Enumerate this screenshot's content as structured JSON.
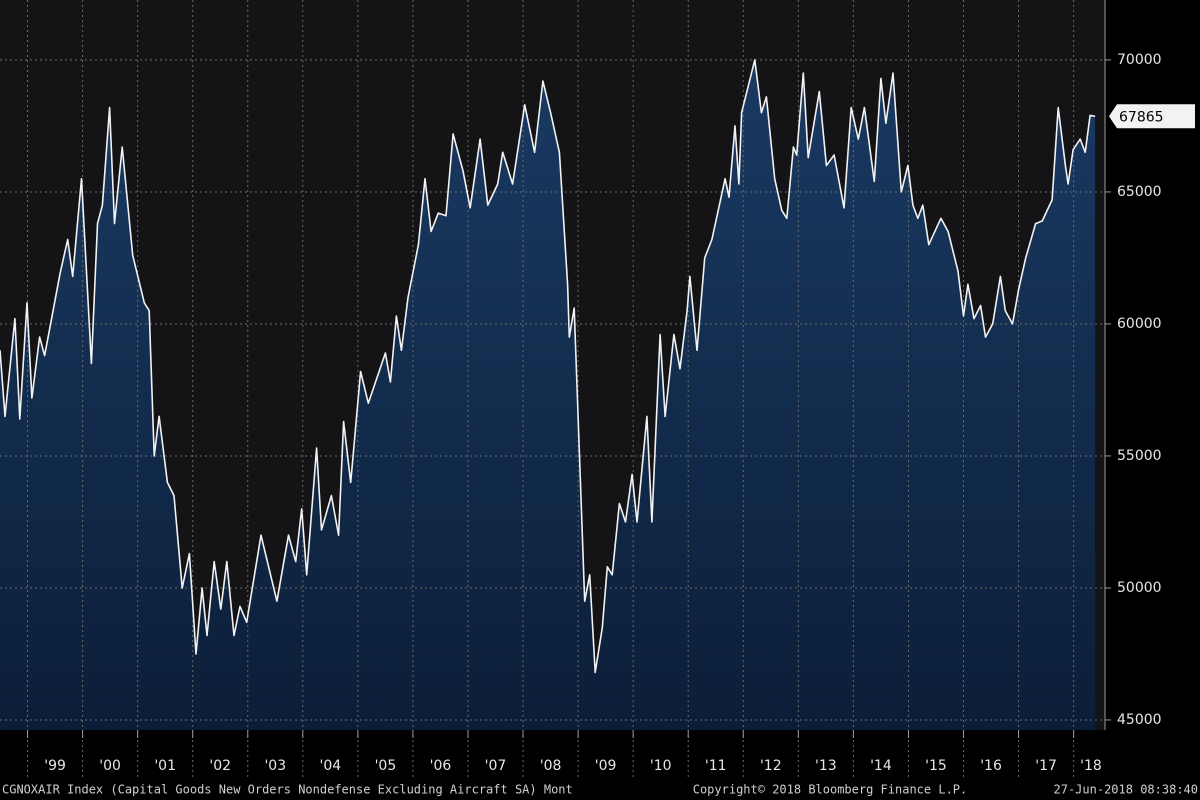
{
  "chart_data": {
    "type": "area",
    "line_color": "#f2f2f2",
    "fill_color": "#1a3a63",
    "grid": true,
    "xlim": [
      1998.5,
      2018.57
    ],
    "ylim": [
      44620,
      72270
    ],
    "yticks": [
      45000,
      50000,
      55000,
      60000,
      65000,
      70000
    ],
    "xticks": [
      {
        "value": 1999,
        "label": "'99"
      },
      {
        "value": 2000,
        "label": "'00"
      },
      {
        "value": 2001,
        "label": "'01"
      },
      {
        "value": 2002,
        "label": "'02"
      },
      {
        "value": 2003,
        "label": "'03"
      },
      {
        "value": 2004,
        "label": "'04"
      },
      {
        "value": 2005,
        "label": "'05"
      },
      {
        "value": 2006,
        "label": "'06"
      },
      {
        "value": 2007,
        "label": "'07"
      },
      {
        "value": 2008,
        "label": "'08"
      },
      {
        "value": 2009,
        "label": "'09"
      },
      {
        "value": 2010,
        "label": "'10"
      },
      {
        "value": 2011,
        "label": "'11"
      },
      {
        "value": 2012,
        "label": "'12"
      },
      {
        "value": 2013,
        "label": "'13"
      },
      {
        "value": 2014,
        "label": "'14"
      },
      {
        "value": 2015,
        "label": "'15"
      },
      {
        "value": 2016,
        "label": "'16"
      },
      {
        "value": 2017,
        "label": "'17"
      },
      {
        "value": 2018,
        "label": "'18"
      }
    ],
    "x": [
      1998.5,
      1998.59,
      1998.77,
      1998.86,
      1998.99,
      1999.08,
      1999.22,
      1999.31,
      1999.4,
      1999.59,
      1999.73,
      1999.82,
      1999.98,
      2000.16,
      2000.27,
      2000.36,
      2000.49,
      2000.58,
      2000.72,
      2000.91,
      2001.12,
      2001.21,
      2001.3,
      2001.39,
      2001.54,
      2001.66,
      2001.81,
      2001.94,
      2002.06,
      2002.17,
      2002.26,
      2002.39,
      2002.51,
      2002.62,
      2002.75,
      2002.86,
      2002.98,
      2003.24,
      2003.53,
      2003.74,
      2003.87,
      2003.98,
      2004.07,
      2004.25,
      2004.34,
      2004.52,
      2004.65,
      2004.74,
      2004.87,
      2005.05,
      2005.19,
      2005.5,
      2005.59,
      2005.7,
      2005.79,
      2005.91,
      2006.1,
      2006.22,
      2006.33,
      2006.46,
      2006.6,
      2006.73,
      2006.91,
      2007.04,
      2007.22,
      2007.36,
      2007.54,
      2007.63,
      2007.81,
      2008.03,
      2008.21,
      2008.36,
      2008.5,
      2008.66,
      2008.81,
      2008.84,
      2008.93,
      2009.12,
      2009.21,
      2009.31,
      2009.44,
      2009.53,
      2009.62,
      2009.75,
      2009.86,
      2009.98,
      2010.07,
      2010.25,
      2010.34,
      2010.49,
      2010.58,
      2010.74,
      2010.85,
      2010.98,
      2011.03,
      2011.16,
      2011.3,
      2011.43,
      2011.67,
      2011.74,
      2011.85,
      2011.92,
      2011.97,
      2012.21,
      2012.33,
      2012.42,
      2012.57,
      2012.7,
      2012.79,
      2012.91,
      2012.97,
      2013.09,
      2013.18,
      2013.38,
      2013.51,
      2013.65,
      2013.83,
      2013.96,
      2014.09,
      2014.2,
      2014.38,
      2014.5,
      2014.59,
      2014.72,
      2014.87,
      2014.99,
      2015.08,
      2015.17,
      2015.26,
      2015.37,
      2015.5,
      2015.59,
      2015.72,
      2015.9,
      2016.0,
      2016.08,
      2016.19,
      2016.31,
      2016.4,
      2016.53,
      2016.67,
      2016.76,
      2016.89,
      2017.0,
      2017.13,
      2017.31,
      2017.43,
      2017.61,
      2017.72,
      2017.85,
      2017.9,
      2017.99,
      2018.12,
      2018.21,
      2018.3,
      2018.39
    ],
    "values": [
      59000,
      56500,
      60200,
      56400,
      60800,
      57200,
      59500,
      58800,
      59800,
      61900,
      63200,
      61800,
      65500,
      58500,
      63800,
      64500,
      68200,
      63800,
      66700,
      62600,
      60800,
      60500,
      55000,
      56500,
      54000,
      53500,
      50000,
      51300,
      47500,
      50000,
      48200,
      51000,
      49200,
      51000,
      48200,
      49300,
      48700,
      52000,
      49500,
      52000,
      51000,
      53000,
      50500,
      55300,
      52200,
      53500,
      52000,
      56300,
      54000,
      58200,
      57000,
      58900,
      57800,
      60300,
      59000,
      61000,
      63000,
      65500,
      63500,
      64200,
      64100,
      67200,
      65800,
      64400,
      67000,
      64500,
      65300,
      66500,
      65300,
      68300,
      66500,
      69200,
      68000,
      66500,
      61500,
      59500,
      60600,
      49500,
      50500,
      46800,
      48500,
      50800,
      50500,
      53200,
      52500,
      54300,
      52500,
      56500,
      52500,
      59600,
      56500,
      59600,
      58300,
      60500,
      61800,
      59000,
      62500,
      63200,
      65500,
      64800,
      67500,
      65300,
      68000,
      70000,
      68000,
      68600,
      65500,
      64300,
      64000,
      66700,
      66400,
      69500,
      66300,
      68800,
      66000,
      66400,
      64400,
      68200,
      67000,
      68200,
      65400,
      69300,
      67600,
      69500,
      65000,
      66000,
      64500,
      64000,
      64500,
      63000,
      63600,
      64000,
      63500,
      62000,
      60300,
      61500,
      60200,
      60700,
      59500,
      60000,
      61800,
      60500,
      60000,
      61300,
      62500,
      63800,
      63900,
      64700,
      68200,
      66000,
      65300,
      66600,
      67000,
      66500,
      67900,
      67865
    ],
    "footer_left": "CGNOXAIR Index (Capital Goods New Orders Nondefense Excluding Aircraft SA)  Mont",
    "footer_center": "Copyright© 2018 Bloomberg Finance L.P.",
    "footer_right": "27-Jun-2018 08:38:40"
  }
}
